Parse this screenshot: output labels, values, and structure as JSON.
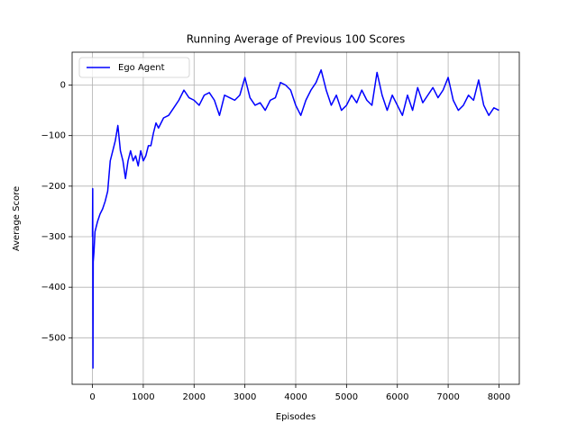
{
  "chart_data": {
    "type": "line",
    "title": "Running Average of Previous 100 Scores",
    "x_label": "Episodes",
    "y_label": "Average Score",
    "x": [
      0,
      5,
      10,
      15,
      30,
      50,
      100,
      150,
      200,
      250,
      300,
      350,
      400,
      450,
      500,
      550,
      600,
      650,
      700,
      750,
      800,
      850,
      900,
      950,
      1000,
      1050,
      1100,
      1150,
      1200,
      1250,
      1300,
      1400,
      1500,
      1600,
      1700,
      1800,
      1900,
      2000,
      2100,
      2200,
      2300,
      2400,
      2500,
      2600,
      2700,
      2800,
      2900,
      3000,
      3100,
      3200,
      3300,
      3400,
      3500,
      3600,
      3700,
      3800,
      3900,
      4000,
      4100,
      4200,
      4300,
      4400,
      4500,
      4600,
      4700,
      4800,
      4900,
      5000,
      5100,
      5200,
      5300,
      5400,
      5500,
      5600,
      5700,
      5800,
      5900,
      6000,
      6100,
      6200,
      6300,
      6400,
      6500,
      6600,
      6700,
      6800,
      6900,
      7000,
      7100,
      7200,
      7300,
      7400,
      7500,
      7600,
      7700,
      7800,
      7900,
      8000
    ],
    "series": [
      {
        "name": "Ego Agent",
        "color": "#0000ff",
        "values": [
          -300,
          -205,
          -560,
          -350,
          -330,
          -290,
          -270,
          -255,
          -245,
          -230,
          -210,
          -150,
          -130,
          -110,
          -80,
          -130,
          -150,
          -185,
          -150,
          -130,
          -150,
          -140,
          -160,
          -130,
          -150,
          -140,
          -120,
          -120,
          -95,
          -75,
          -85,
          -65,
          -60,
          -45,
          -30,
          -10,
          -25,
          -30,
          -40,
          -20,
          -15,
          -30,
          -60,
          -20,
          -25,
          -30,
          -20,
          15,
          -25,
          -40,
          -35,
          -50,
          -30,
          -25,
          5,
          0,
          -10,
          -40,
          -60,
          -30,
          -10,
          5,
          30,
          -10,
          -40,
          -20,
          -50,
          -40,
          -20,
          -35,
          -10,
          -30,
          -40,
          25,
          -20,
          -50,
          -20,
          -40,
          -60,
          -20,
          -50,
          -5,
          -35,
          -20,
          -5,
          -25,
          -10,
          15,
          -30,
          -50,
          -40,
          -20,
          -30,
          10,
          -40,
          -60,
          -45,
          -50
        ]
      }
    ],
    "xlim": [
      -400,
      8400
    ],
    "ylim": [
      -592,
      65
    ],
    "xticks": [
      0,
      1000,
      2000,
      3000,
      4000,
      5000,
      6000,
      7000,
      8000
    ],
    "yticks": [
      {
        "value": -500,
        "label": "−500"
      },
      {
        "value": -400,
        "label": "−400"
      },
      {
        "value": -300,
        "label": "−300"
      },
      {
        "value": -200,
        "label": "−200"
      },
      {
        "value": -100,
        "label": "−100"
      },
      0
    ],
    "grid": true,
    "legend": "upper left"
  }
}
